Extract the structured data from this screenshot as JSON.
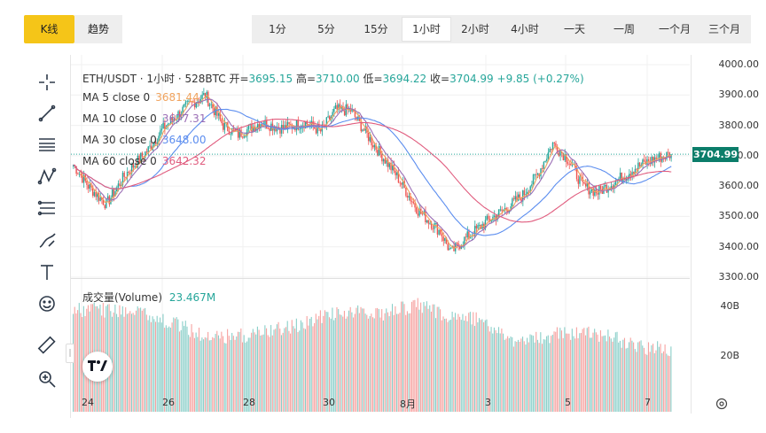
{
  "view_tabs": [
    {
      "label": "K线",
      "active": true
    },
    {
      "label": "趋势",
      "active": false
    }
  ],
  "intervals": [
    {
      "label": "1分",
      "active": false
    },
    {
      "label": "5分",
      "active": false
    },
    {
      "label": "15分",
      "active": false
    },
    {
      "label": "1小时",
      "active": true
    },
    {
      "label": "2小时",
      "active": false
    },
    {
      "label": "4小时",
      "active": false
    },
    {
      "label": "一天",
      "active": false
    },
    {
      "label": "一周",
      "active": false
    },
    {
      "label": "一个月",
      "active": false
    },
    {
      "label": "三个月",
      "active": false
    }
  ],
  "toolbar": [
    {
      "name": "crosshair-icon"
    },
    {
      "name": "trendline-icon"
    },
    {
      "name": "horizontal-lines-icon"
    },
    {
      "name": "pattern-icon"
    },
    {
      "name": "fibonacci-icon"
    },
    {
      "name": "brush-icon"
    },
    {
      "name": "text-icon"
    },
    {
      "name": "emoji-icon"
    },
    {
      "name": "ruler-icon"
    },
    {
      "name": "zoom-in-icon"
    }
  ],
  "ohlc": {
    "symbol": "ETH/USDT · 1小时 · 528BTC",
    "open_label": "开=",
    "open": "3695.15",
    "high_label": "高=",
    "high": "3710.00",
    "low_label": "低=",
    "low": "3694.22",
    "close_label": "收=",
    "close": "3704.99",
    "change": "+9.85 (+0.27%)"
  },
  "ma_legend": [
    {
      "label": "MA 5 close 0",
      "value": "3681.44",
      "color": "#f0a35e"
    },
    {
      "label": "MA 10 close 0",
      "value": "3677.31",
      "color": "#9b6fb6"
    },
    {
      "label": "MA 30 close 0",
      "value": "3648.00",
      "color": "#5b8def"
    },
    {
      "label": "MA 60 close 0",
      "value": "3642.32",
      "color": "#e05c7e"
    }
  ],
  "volume_legend": {
    "label": "成交量(Volume)",
    "value": "23.467M",
    "color": "#26a69a"
  },
  "current_price_tag": "3704.99",
  "colors": {
    "up": "#26a69a",
    "down": "#ef5350",
    "accent": "#f5c518"
  },
  "chart_data": {
    "type": "candlestick",
    "title": "ETH/USDT · 1小时 · 528BTC",
    "ylim": [
      3300,
      4000
    ],
    "yticks": [
      "4000.00",
      "3900.00",
      "3800.00",
      "3700.00",
      "3600.00",
      "3500.00",
      "3400.00",
      "3300.00"
    ],
    "xticks": [
      "24",
      "26",
      "28",
      "30",
      "8月",
      "3",
      "5",
      "7"
    ],
    "volume_ticks": [
      "40B",
      "20B"
    ],
    "volume_ylim": [
      0,
      50
    ],
    "close_path_keypoints": [
      [
        0,
        3670
      ],
      [
        10,
        3600
      ],
      [
        22,
        3540
      ],
      [
        35,
        3640
      ],
      [
        50,
        3720
      ],
      [
        60,
        3790
      ],
      [
        75,
        3860
      ],
      [
        88,
        3900
      ],
      [
        100,
        3800
      ],
      [
        110,
        3770
      ],
      [
        125,
        3810
      ],
      [
        140,
        3790
      ],
      [
        155,
        3810
      ],
      [
        165,
        3780
      ],
      [
        175,
        3850
      ],
      [
        185,
        3850
      ],
      [
        200,
        3740
      ],
      [
        215,
        3640
      ],
      [
        230,
        3520
      ],
      [
        245,
        3450
      ],
      [
        252,
        3380
      ],
      [
        260,
        3420
      ],
      [
        275,
        3480
      ],
      [
        290,
        3530
      ],
      [
        300,
        3570
      ],
      [
        310,
        3640
      ],
      [
        320,
        3740
      ],
      [
        330,
        3690
      ],
      [
        340,
        3600
      ],
      [
        350,
        3580
      ],
      [
        360,
        3610
      ],
      [
        375,
        3660
      ],
      [
        388,
        3690
      ],
      [
        399,
        3705
      ]
    ],
    "volume_keypoints": [
      [
        0,
        44
      ],
      [
        40,
        44
      ],
      [
        70,
        38
      ],
      [
        90,
        33
      ],
      [
        120,
        34
      ],
      [
        150,
        38
      ],
      [
        175,
        43
      ],
      [
        190,
        43
      ],
      [
        205,
        42
      ],
      [
        215,
        44
      ],
      [
        230,
        46
      ],
      [
        250,
        42
      ],
      [
        270,
        40
      ],
      [
        290,
        33
      ],
      [
        300,
        31
      ],
      [
        320,
        34
      ],
      [
        340,
        35
      ],
      [
        360,
        33
      ],
      [
        380,
        29
      ],
      [
        399,
        28
      ]
    ],
    "last_close": 3704.99
  }
}
